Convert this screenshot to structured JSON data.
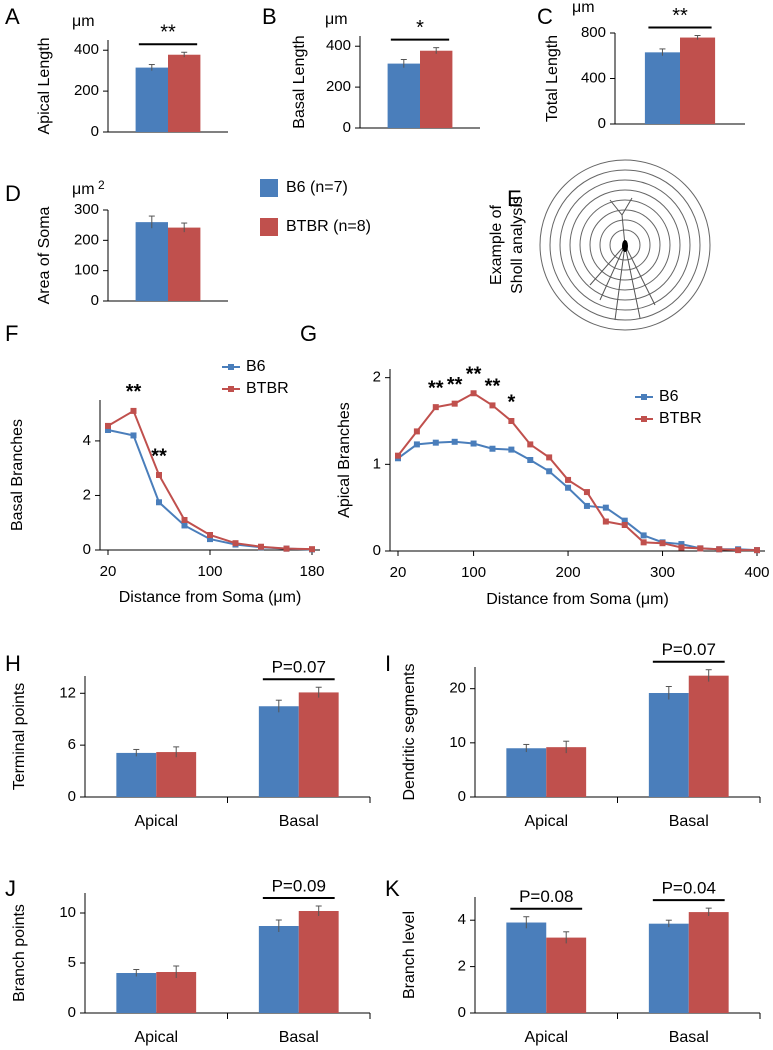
{
  "chart_data": [
    {
      "type": "bar",
      "panel": "A",
      "ylabel": "Apical Length",
      "unit": "μm",
      "ylim": [
        0,
        450
      ],
      "yticks": [
        0,
        200,
        400
      ],
      "series": [
        {
          "color": "#4a7ebb",
          "values": [
            315
          ],
          "errors": [
            15
          ]
        },
        {
          "color": "#c0504d",
          "values": [
            378
          ],
          "errors": [
            12
          ]
        }
      ],
      "annotations": [
        {
          "text": "**"
        }
      ]
    },
    {
      "type": "bar",
      "panel": "B",
      "ylabel": "Basal Length",
      "unit": "μm",
      "ylim": [
        0,
        450
      ],
      "yticks": [
        0,
        200,
        400
      ],
      "series": [
        {
          "color": "#4a7ebb",
          "values": [
            315
          ],
          "errors": [
            20
          ]
        },
        {
          "color": "#c0504d",
          "values": [
            378
          ],
          "errors": [
            15
          ]
        }
      ],
      "annotations": [
        {
          "text": "*"
        }
      ]
    },
    {
      "type": "bar",
      "panel": "C",
      "ylabel": "Total Length",
      "unit": "μm",
      "ylim": [
        0,
        800
      ],
      "yticks": [
        0,
        400,
        800
      ],
      "series": [
        {
          "color": "#4a7ebb",
          "values": [
            630
          ],
          "errors": [
            30
          ]
        },
        {
          "color": "#c0504d",
          "values": [
            760
          ],
          "errors": [
            18
          ]
        }
      ],
      "annotations": [
        {
          "text": "**"
        }
      ]
    },
    {
      "type": "bar",
      "panel": "D",
      "ylabel": "Area of Soma",
      "unit": "μm",
      "unit_power": "2",
      "ylim": [
        0,
        300
      ],
      "yticks": [
        0,
        100,
        200,
        300
      ],
      "series": [
        {
          "name": "B6 (n=7)",
          "color": "#4a7ebb",
          "values": [
            260
          ],
          "errors": [
            20
          ]
        },
        {
          "name": "BTBR (n=8)",
          "color": "#c0504d",
          "values": [
            242
          ],
          "errors": [
            15
          ]
        }
      ],
      "annotations": []
    },
    {
      "type": "line",
      "panel": "F",
      "ylabel": "Basal Branches",
      "xlabel": "Distance from Soma (μm)",
      "x": [
        20,
        40,
        60,
        80,
        100,
        120,
        140,
        160,
        180
      ],
      "xlim": [
        20,
        180
      ],
      "xticks": [
        20,
        100,
        180
      ],
      "ylim": [
        0,
        5.5
      ],
      "yticks": [
        0,
        2,
        4
      ],
      "series": [
        {
          "name": "B6",
          "color": "#4a7ebb",
          "values": [
            4.4,
            4.2,
            1.75,
            0.9,
            0.4,
            0.2,
            0.1,
            0.05,
            0.02
          ]
        },
        {
          "name": "BTBR",
          "color": "#c0504d",
          "values": [
            4.55,
            5.1,
            2.75,
            1.1,
            0.55,
            0.25,
            0.12,
            0.05,
            0.03
          ]
        }
      ],
      "annotations": [
        {
          "text": "**",
          "x": 40
        },
        {
          "text": "**",
          "x": 60
        }
      ]
    },
    {
      "type": "line",
      "panel": "G",
      "ylabel": "Apical Branches",
      "xlabel": "Distance from Soma (μm)",
      "x": [
        20,
        40,
        60,
        80,
        100,
        120,
        140,
        160,
        180,
        200,
        220,
        240,
        260,
        280,
        300,
        320,
        340,
        360,
        380,
        400
      ],
      "xlim": [
        20,
        400
      ],
      "xticks": [
        20,
        100,
        200,
        300,
        400
      ],
      "ylim": [
        0,
        2.1
      ],
      "yticks": [
        0,
        1,
        2
      ],
      "series": [
        {
          "name": "B6",
          "color": "#4a7ebb",
          "values": [
            1.07,
            1.23,
            1.25,
            1.26,
            1.24,
            1.18,
            1.17,
            1.05,
            0.92,
            0.73,
            0.52,
            0.5,
            0.35,
            0.18,
            0.1,
            0.08,
            0.03,
            0.02,
            0.02,
            0.01
          ]
        },
        {
          "name": "BTBR",
          "color": "#c0504d",
          "values": [
            1.1,
            1.38,
            1.66,
            1.7,
            1.82,
            1.68,
            1.5,
            1.23,
            1.08,
            0.82,
            0.68,
            0.34,
            0.3,
            0.1,
            0.09,
            0.04,
            0.03,
            0.02,
            0.01,
            0.01
          ]
        }
      ],
      "annotations": [
        {
          "text": "**",
          "x": 60
        },
        {
          "text": "**",
          "x": 80
        },
        {
          "text": "**",
          "x": 100
        },
        {
          "text": "**",
          "x": 120
        },
        {
          "text": "*",
          "x": 140
        }
      ]
    },
    {
      "type": "bar",
      "panel": "H",
      "ylabel": "Terminal points",
      "categories": [
        "Apical",
        "Basal"
      ],
      "ylim": [
        0,
        14
      ],
      "yticks": [
        0,
        6,
        12
      ],
      "series": [
        {
          "color": "#4a7ebb",
          "values": [
            5.1,
            10.5
          ],
          "errors": [
            0.4,
            0.7
          ]
        },
        {
          "color": "#c0504d",
          "values": [
            5.2,
            12.1
          ],
          "errors": [
            0.6,
            0.6
          ]
        }
      ],
      "annotations": [
        {
          "text": "P=0.07",
          "category": "Basal"
        }
      ]
    },
    {
      "type": "bar",
      "panel": "I",
      "ylabel": "Dendritic segments",
      "categories": [
        "Apical",
        "Basal"
      ],
      "ylim": [
        0,
        24
      ],
      "yticks": [
        0,
        10,
        20
      ],
      "series": [
        {
          "color": "#4a7ebb",
          "values": [
            9,
            19.2
          ],
          "errors": [
            0.7,
            1.2
          ]
        },
        {
          "color": "#c0504d",
          "values": [
            9.2,
            22.4
          ],
          "errors": [
            1.1,
            1.1
          ]
        }
      ],
      "annotations": [
        {
          "text": "P=0.07",
          "category": "Basal"
        }
      ]
    },
    {
      "type": "bar",
      "panel": "J",
      "ylabel": "Branch points",
      "categories": [
        "Apical",
        "Basal"
      ],
      "ylim": [
        0,
        12
      ],
      "yticks": [
        0,
        5,
        10
      ],
      "series": [
        {
          "color": "#4a7ebb",
          "values": [
            4,
            8.7
          ],
          "errors": [
            0.35,
            0.6
          ]
        },
        {
          "color": "#c0504d",
          "values": [
            4.1,
            10.2
          ],
          "errors": [
            0.6,
            0.5
          ]
        }
      ],
      "annotations": [
        {
          "text": "P=0.09",
          "category": "Basal"
        }
      ]
    },
    {
      "type": "bar",
      "panel": "K",
      "ylabel": "Branch level",
      "categories": [
        "Apical",
        "Basal"
      ],
      "ylim": [
        0,
        5
      ],
      "yticks": [
        0,
        2,
        4
      ],
      "series": [
        {
          "color": "#4a7ebb",
          "values": [
            3.9,
            3.85
          ],
          "errors": [
            0.25,
            0.15
          ]
        },
        {
          "color": "#c0504d",
          "values": [
            3.25,
            4.35
          ],
          "errors": [
            0.25,
            0.17
          ]
        }
      ],
      "annotations": [
        {
          "text": "P=0.08",
          "category": "Apical"
        },
        {
          "text": "P=0.04",
          "category": "Basal"
        }
      ]
    }
  ],
  "diagram": {
    "panel": "E",
    "caption": [
      "Example of",
      "Sholl analysis"
    ]
  }
}
